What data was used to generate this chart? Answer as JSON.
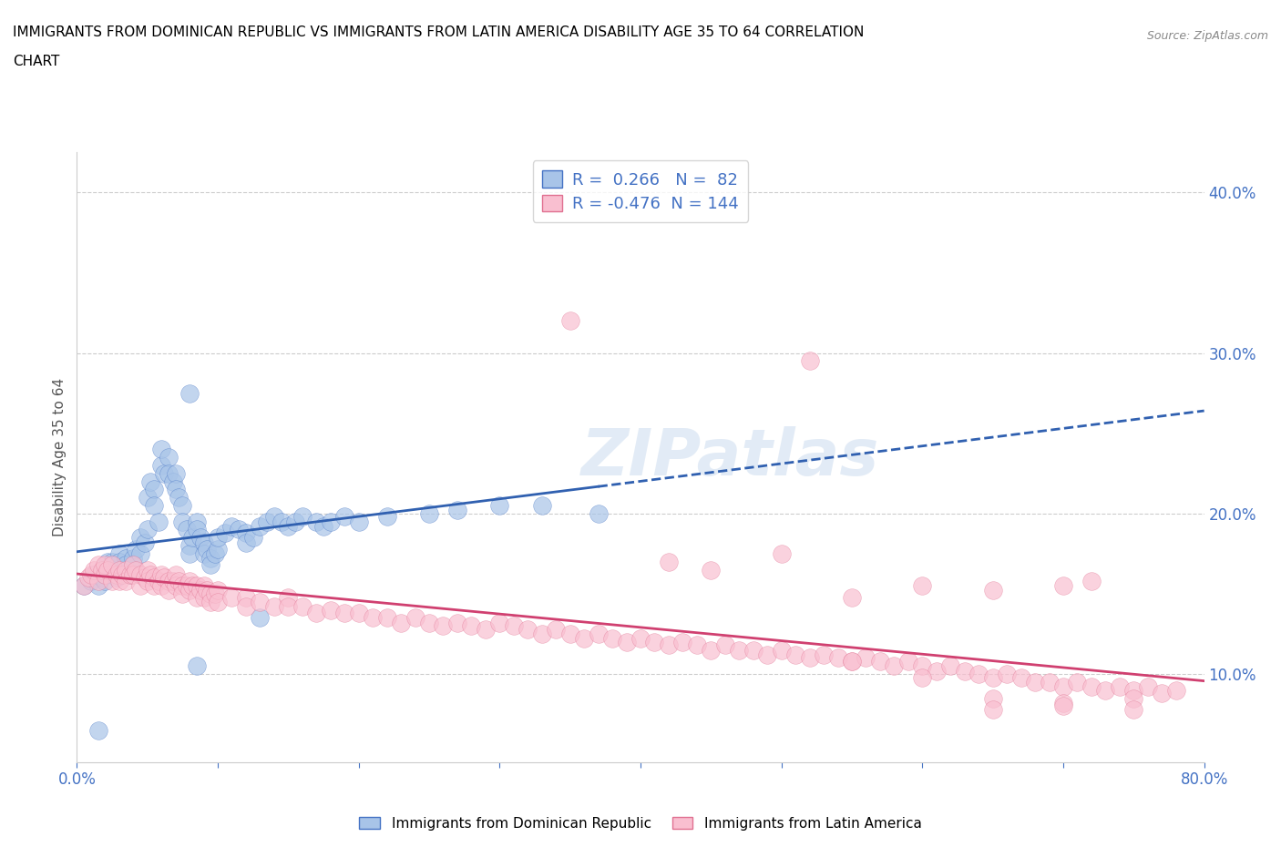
{
  "title_line1": "IMMIGRANTS FROM DOMINICAN REPUBLIC VS IMMIGRANTS FROM LATIN AMERICA DISABILITY AGE 35 TO 64 CORRELATION",
  "title_line2": "CHART",
  "source_text": "Source: ZipAtlas.com",
  "ylabel": "Disability Age 35 to 64",
  "xlim": [
    0.0,
    0.8
  ],
  "ylim": [
    0.045,
    0.425
  ],
  "yticks": [
    0.1,
    0.2,
    0.3,
    0.4
  ],
  "yticklabels": [
    "10.0%",
    "20.0%",
    "30.0%",
    "40.0%"
  ],
  "xtick_positions": [
    0.0,
    0.1,
    0.2,
    0.3,
    0.4,
    0.5,
    0.6,
    0.7,
    0.8
  ],
  "xticklabels": [
    "0.0%",
    "",
    "",
    "",
    "",
    "",
    "",
    "",
    "80.0%"
  ],
  "blue_fill": "#a8c4e8",
  "blue_edge": "#4472c4",
  "pink_fill": "#f9bfd0",
  "pink_edge": "#e07090",
  "blue_line_color": "#3060b0",
  "pink_line_color": "#d04070",
  "R_blue": 0.266,
  "N_blue": 82,
  "R_pink": -0.476,
  "N_pink": 144,
  "legend_label_blue": "Immigrants from Dominican Republic",
  "legend_label_pink": "Immigrants from Latin America",
  "watermark": "ZIPatlas",
  "blue_scatter": [
    [
      0.005,
      0.155
    ],
    [
      0.01,
      0.158
    ],
    [
      0.012,
      0.162
    ],
    [
      0.015,
      0.155
    ],
    [
      0.018,
      0.16
    ],
    [
      0.02,
      0.162
    ],
    [
      0.02,
      0.158
    ],
    [
      0.022,
      0.17
    ],
    [
      0.025,
      0.165
    ],
    [
      0.025,
      0.17
    ],
    [
      0.028,
      0.16
    ],
    [
      0.03,
      0.175
    ],
    [
      0.03,
      0.17
    ],
    [
      0.032,
      0.165
    ],
    [
      0.035,
      0.172
    ],
    [
      0.035,
      0.168
    ],
    [
      0.038,
      0.162
    ],
    [
      0.04,
      0.168
    ],
    [
      0.04,
      0.172
    ],
    [
      0.042,
      0.178
    ],
    [
      0.045,
      0.185
    ],
    [
      0.045,
      0.175
    ],
    [
      0.048,
      0.182
    ],
    [
      0.05,
      0.19
    ],
    [
      0.05,
      0.21
    ],
    [
      0.052,
      0.22
    ],
    [
      0.055,
      0.215
    ],
    [
      0.055,
      0.205
    ],
    [
      0.058,
      0.195
    ],
    [
      0.06,
      0.23
    ],
    [
      0.06,
      0.24
    ],
    [
      0.062,
      0.225
    ],
    [
      0.065,
      0.235
    ],
    [
      0.065,
      0.225
    ],
    [
      0.068,
      0.22
    ],
    [
      0.07,
      0.225
    ],
    [
      0.07,
      0.215
    ],
    [
      0.072,
      0.21
    ],
    [
      0.075,
      0.205
    ],
    [
      0.075,
      0.195
    ],
    [
      0.078,
      0.19
    ],
    [
      0.08,
      0.18
    ],
    [
      0.08,
      0.175
    ],
    [
      0.082,
      0.185
    ],
    [
      0.085,
      0.195
    ],
    [
      0.085,
      0.19
    ],
    [
      0.088,
      0.185
    ],
    [
      0.09,
      0.182
    ],
    [
      0.09,
      0.175
    ],
    [
      0.092,
      0.178
    ],
    [
      0.095,
      0.172
    ],
    [
      0.095,
      0.168
    ],
    [
      0.098,
      0.175
    ],
    [
      0.1,
      0.178
    ],
    [
      0.1,
      0.185
    ],
    [
      0.105,
      0.188
    ],
    [
      0.11,
      0.192
    ],
    [
      0.115,
      0.19
    ],
    [
      0.12,
      0.188
    ],
    [
      0.12,
      0.182
    ],
    [
      0.125,
      0.185
    ],
    [
      0.13,
      0.192
    ],
    [
      0.135,
      0.195
    ],
    [
      0.14,
      0.198
    ],
    [
      0.145,
      0.195
    ],
    [
      0.15,
      0.192
    ],
    [
      0.155,
      0.195
    ],
    [
      0.16,
      0.198
    ],
    [
      0.17,
      0.195
    ],
    [
      0.175,
      0.192
    ],
    [
      0.18,
      0.195
    ],
    [
      0.19,
      0.198
    ],
    [
      0.2,
      0.195
    ],
    [
      0.22,
      0.198
    ],
    [
      0.25,
      0.2
    ],
    [
      0.27,
      0.202
    ],
    [
      0.3,
      0.205
    ],
    [
      0.33,
      0.205
    ],
    [
      0.37,
      0.2
    ],
    [
      0.015,
      0.065
    ],
    [
      0.085,
      0.105
    ],
    [
      0.13,
      0.135
    ],
    [
      0.08,
      0.275
    ]
  ],
  "pink_scatter": [
    [
      0.005,
      0.155
    ],
    [
      0.008,
      0.16
    ],
    [
      0.01,
      0.162
    ],
    [
      0.012,
      0.165
    ],
    [
      0.015,
      0.168
    ],
    [
      0.015,
      0.158
    ],
    [
      0.018,
      0.165
    ],
    [
      0.02,
      0.162
    ],
    [
      0.02,
      0.168
    ],
    [
      0.022,
      0.165
    ],
    [
      0.025,
      0.168
    ],
    [
      0.025,
      0.158
    ],
    [
      0.028,
      0.162
    ],
    [
      0.03,
      0.165
    ],
    [
      0.03,
      0.158
    ],
    [
      0.032,
      0.162
    ],
    [
      0.035,
      0.165
    ],
    [
      0.035,
      0.158
    ],
    [
      0.038,
      0.162
    ],
    [
      0.04,
      0.168
    ],
    [
      0.04,
      0.162
    ],
    [
      0.042,
      0.165
    ],
    [
      0.045,
      0.162
    ],
    [
      0.045,
      0.155
    ],
    [
      0.048,
      0.16
    ],
    [
      0.05,
      0.165
    ],
    [
      0.05,
      0.158
    ],
    [
      0.052,
      0.162
    ],
    [
      0.055,
      0.16
    ],
    [
      0.055,
      0.155
    ],
    [
      0.058,
      0.158
    ],
    [
      0.06,
      0.162
    ],
    [
      0.06,
      0.155
    ],
    [
      0.062,
      0.16
    ],
    [
      0.065,
      0.158
    ],
    [
      0.065,
      0.152
    ],
    [
      0.068,
      0.158
    ],
    [
      0.07,
      0.162
    ],
    [
      0.07,
      0.155
    ],
    [
      0.072,
      0.158
    ],
    [
      0.075,
      0.155
    ],
    [
      0.075,
      0.15
    ],
    [
      0.078,
      0.155
    ],
    [
      0.08,
      0.158
    ],
    [
      0.08,
      0.152
    ],
    [
      0.082,
      0.155
    ],
    [
      0.085,
      0.155
    ],
    [
      0.085,
      0.148
    ],
    [
      0.088,
      0.152
    ],
    [
      0.09,
      0.155
    ],
    [
      0.09,
      0.148
    ],
    [
      0.092,
      0.152
    ],
    [
      0.095,
      0.15
    ],
    [
      0.095,
      0.145
    ],
    [
      0.098,
      0.15
    ],
    [
      0.1,
      0.152
    ],
    [
      0.1,
      0.145
    ],
    [
      0.11,
      0.148
    ],
    [
      0.12,
      0.148
    ],
    [
      0.12,
      0.142
    ],
    [
      0.13,
      0.145
    ],
    [
      0.14,
      0.142
    ],
    [
      0.15,
      0.148
    ],
    [
      0.15,
      0.142
    ],
    [
      0.16,
      0.142
    ],
    [
      0.17,
      0.138
    ],
    [
      0.18,
      0.14
    ],
    [
      0.19,
      0.138
    ],
    [
      0.2,
      0.138
    ],
    [
      0.21,
      0.135
    ],
    [
      0.22,
      0.135
    ],
    [
      0.23,
      0.132
    ],
    [
      0.24,
      0.135
    ],
    [
      0.25,
      0.132
    ],
    [
      0.26,
      0.13
    ],
    [
      0.27,
      0.132
    ],
    [
      0.28,
      0.13
    ],
    [
      0.29,
      0.128
    ],
    [
      0.3,
      0.132
    ],
    [
      0.31,
      0.13
    ],
    [
      0.32,
      0.128
    ],
    [
      0.33,
      0.125
    ],
    [
      0.34,
      0.128
    ],
    [
      0.35,
      0.125
    ],
    [
      0.36,
      0.122
    ],
    [
      0.37,
      0.125
    ],
    [
      0.38,
      0.122
    ],
    [
      0.39,
      0.12
    ],
    [
      0.4,
      0.122
    ],
    [
      0.41,
      0.12
    ],
    [
      0.42,
      0.118
    ],
    [
      0.43,
      0.12
    ],
    [
      0.44,
      0.118
    ],
    [
      0.45,
      0.115
    ],
    [
      0.46,
      0.118
    ],
    [
      0.47,
      0.115
    ],
    [
      0.48,
      0.115
    ],
    [
      0.49,
      0.112
    ],
    [
      0.5,
      0.115
    ],
    [
      0.51,
      0.112
    ],
    [
      0.52,
      0.11
    ],
    [
      0.53,
      0.112
    ],
    [
      0.54,
      0.11
    ],
    [
      0.55,
      0.108
    ],
    [
      0.56,
      0.11
    ],
    [
      0.57,
      0.108
    ],
    [
      0.58,
      0.105
    ],
    [
      0.59,
      0.108
    ],
    [
      0.6,
      0.105
    ],
    [
      0.61,
      0.102
    ],
    [
      0.62,
      0.105
    ],
    [
      0.63,
      0.102
    ],
    [
      0.64,
      0.1
    ],
    [
      0.65,
      0.098
    ],
    [
      0.66,
      0.1
    ],
    [
      0.67,
      0.098
    ],
    [
      0.68,
      0.095
    ],
    [
      0.69,
      0.095
    ],
    [
      0.7,
      0.092
    ],
    [
      0.71,
      0.095
    ],
    [
      0.72,
      0.092
    ],
    [
      0.73,
      0.09
    ],
    [
      0.74,
      0.092
    ],
    [
      0.75,
      0.09
    ],
    [
      0.76,
      0.092
    ],
    [
      0.77,
      0.088
    ],
    [
      0.78,
      0.09
    ],
    [
      0.35,
      0.32
    ],
    [
      0.52,
      0.295
    ],
    [
      0.42,
      0.17
    ],
    [
      0.45,
      0.165
    ],
    [
      0.5,
      0.175
    ],
    [
      0.55,
      0.148
    ],
    [
      0.6,
      0.155
    ],
    [
      0.65,
      0.152
    ],
    [
      0.7,
      0.155
    ],
    [
      0.72,
      0.158
    ],
    [
      0.55,
      0.108
    ],
    [
      0.6,
      0.098
    ],
    [
      0.65,
      0.085
    ],
    [
      0.7,
      0.082
    ],
    [
      0.75,
      0.085
    ],
    [
      0.65,
      0.078
    ],
    [
      0.7,
      0.08
    ],
    [
      0.75,
      0.078
    ]
  ]
}
